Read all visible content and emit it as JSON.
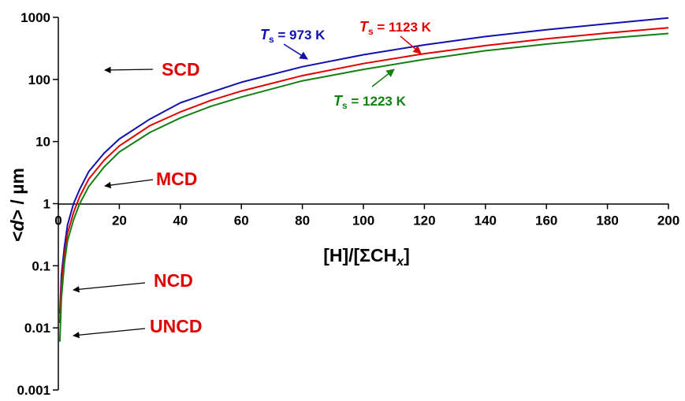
{
  "chart_data": {
    "type": "line",
    "xlabel": "[H]/[ΣCHx]",
    "xlabel_parts": [
      "[H]/[ΣCH",
      "x",
      "]"
    ],
    "ylabel": "<d> / µm",
    "ylabel_parts": [
      "<",
      "d",
      "> / µm"
    ],
    "xlim": [
      0,
      200
    ],
    "ylim": [
      0.001,
      1000
    ],
    "yscale": "log",
    "grid": false,
    "x_ticks": [
      "0",
      "20",
      "40",
      "60",
      "80",
      "100",
      "120",
      "140",
      "160",
      "180",
      "200"
    ],
    "y_ticks": [
      "1000",
      "100",
      "10",
      "1",
      "0.1",
      "0.01",
      "0.001"
    ],
    "x": [
      0.5,
      1,
      2,
      3,
      5,
      7,
      10,
      15,
      20,
      30,
      40,
      50,
      60,
      80,
      100,
      120,
      140,
      160,
      180,
      200
    ],
    "series": [
      {
        "name": "Ts = 973 K",
        "label_parts": [
          "T",
          "s",
          " = 973 K"
        ],
        "color": "#1010b0",
        "values": [
          0.017,
          0.07,
          0.2,
          0.45,
          1.0,
          1.7,
          3.3,
          6.5,
          11,
          23,
          42,
          62,
          90,
          160,
          250,
          360,
          490,
          630,
          790,
          980
        ]
      },
      {
        "name": "Ts = 1123 K",
        "label_parts": [
          "T",
          "s",
          " = 1123 K"
        ],
        "color": "#e00000",
        "values": [
          0.012,
          0.05,
          0.15,
          0.33,
          0.72,
          1.3,
          2.5,
          5.0,
          8.5,
          18,
          30,
          46,
          65,
          115,
          180,
          260,
          350,
          450,
          560,
          680
        ]
      },
      {
        "name": "Ts = 1223 K",
        "label_parts": [
          "T",
          "s",
          " = 1223 K"
        ],
        "color": "#138013",
        "values": [
          0.006,
          0.03,
          0.11,
          0.25,
          0.55,
          1.0,
          1.9,
          3.9,
          6.8,
          14,
          24,
          37,
          52,
          95,
          145,
          210,
          290,
          370,
          460,
          550
        ]
      }
    ],
    "annotations": [
      "SCD",
      "MCD",
      "NCD",
      "UNCD"
    ]
  }
}
